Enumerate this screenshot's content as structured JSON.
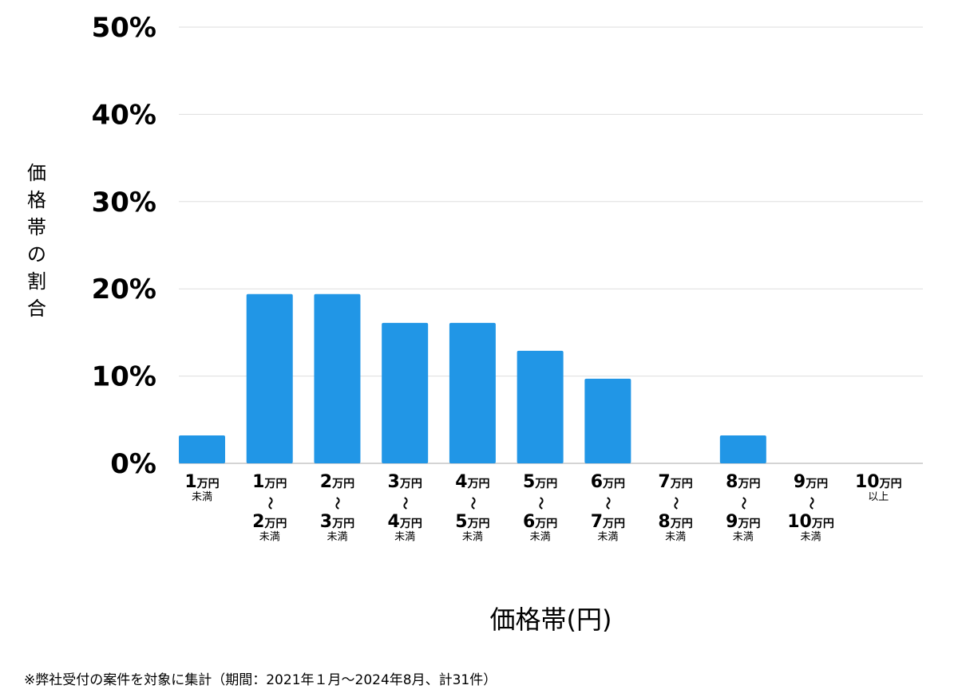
{
  "chart_data": {
    "type": "bar",
    "ylabel": "価格帯の割合",
    "xlabel": "価格帯(円)",
    "ylim": [
      0,
      50
    ],
    "yticks": [
      "0%",
      "10%",
      "20%",
      "30%",
      "40%",
      "50%"
    ],
    "ytick_values": [
      0,
      10,
      20,
      30,
      40,
      50
    ],
    "grid": true,
    "bar_color": "#2196e6",
    "categories": [
      {
        "top_num": "1",
        "top_unit": "万円",
        "bottom_num": "",
        "bottom_unit": "",
        "suffix": "未満"
      },
      {
        "top_num": "1",
        "top_unit": "万円",
        "tilde": "〜",
        "bottom_num": "2",
        "bottom_unit": "万円",
        "suffix": "未満"
      },
      {
        "top_num": "2",
        "top_unit": "万円",
        "tilde": "〜",
        "bottom_num": "3",
        "bottom_unit": "万円",
        "suffix": "未満"
      },
      {
        "top_num": "3",
        "top_unit": "万円",
        "tilde": "〜",
        "bottom_num": "4",
        "bottom_unit": "万円",
        "suffix": "未満"
      },
      {
        "top_num": "4",
        "top_unit": "万円",
        "tilde": "〜",
        "bottom_num": "5",
        "bottom_unit": "万円",
        "suffix": "未満"
      },
      {
        "top_num": "5",
        "top_unit": "万円",
        "tilde": "〜",
        "bottom_num": "6",
        "bottom_unit": "万円",
        "suffix": "未満"
      },
      {
        "top_num": "6",
        "top_unit": "万円",
        "tilde": "〜",
        "bottom_num": "7",
        "bottom_unit": "万円",
        "suffix": "未満"
      },
      {
        "top_num": "7",
        "top_unit": "万円",
        "tilde": "〜",
        "bottom_num": "8",
        "bottom_unit": "万円",
        "suffix": "未満"
      },
      {
        "top_num": "8",
        "top_unit": "万円",
        "tilde": "〜",
        "bottom_num": "9",
        "bottom_unit": "万円",
        "suffix": "未満"
      },
      {
        "top_num": "9",
        "top_unit": "万円",
        "tilde": "〜",
        "bottom_num": "10",
        "bottom_unit": "万円",
        "suffix": "未満"
      },
      {
        "top_num": "10",
        "top_unit": "万円",
        "bottom_num": "",
        "bottom_unit": "",
        "suffix": "以上"
      }
    ],
    "values": [
      3.2,
      19.4,
      19.4,
      16.1,
      16.1,
      12.9,
      9.7,
      0,
      3.2,
      0,
      0
    ]
  },
  "footnote": "※弊社受付の案件を対象に集計（期間：2021年１月〜2024年8月、計31件）"
}
